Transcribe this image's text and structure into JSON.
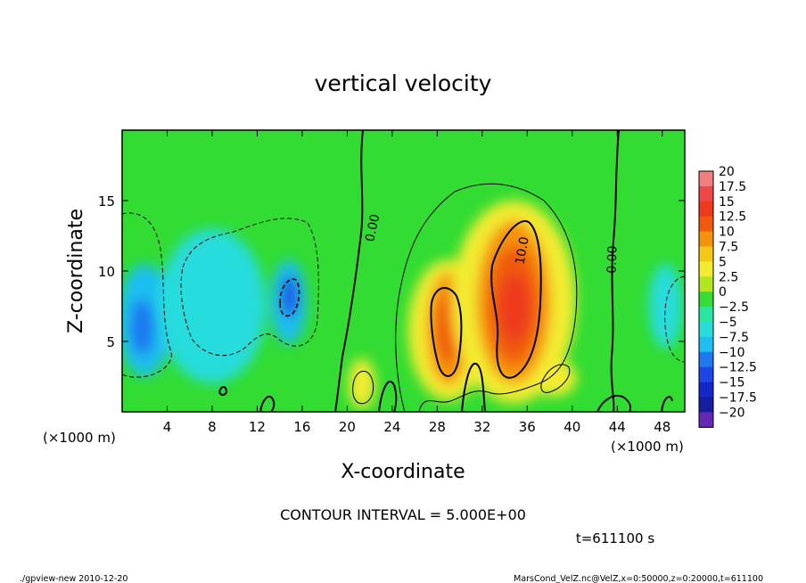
{
  "chart_data": {
    "type": "heatmap",
    "title": "vertical velocity",
    "xlabel": "X-coordinate",
    "ylabel": "Z-coordinate",
    "x_unit_left": "(×1000 m)",
    "x_unit_right": "(×1000 m)",
    "xlim": [
      0,
      50
    ],
    "ylim": [
      0,
      20
    ],
    "x_ticks": [
      4,
      8,
      12,
      16,
      20,
      24,
      28,
      32,
      36,
      40,
      44,
      48
    ],
    "y_ticks": [
      5,
      10,
      15
    ],
    "contour_interval_text": "CONTOUR INTERVAL = 5.000E+00",
    "time_text": "t=611100 s",
    "contour_labels": [
      {
        "text": "0.00",
        "x": 22.6,
        "y": 13.0,
        "rotation": -78
      },
      {
        "text": "10.0",
        "x": 35.9,
        "y": 11.4,
        "rotation": -80
      },
      {
        "text": "0.00",
        "x": 43.9,
        "y": 10.8,
        "rotation": -88
      }
    ],
    "colorbar": {
      "labels": [
        "20",
        "17.5",
        "15",
        "12.5",
        "10",
        "7.5",
        "5",
        "2.5",
        "0",
        "−2.5",
        "−5",
        "−7.5",
        "−10",
        "−12.5",
        "−15",
        "−17.5",
        "−20"
      ],
      "colors": [
        "#f08080",
        "#f04848",
        "#ee3a1c",
        "#f05a0c",
        "#f5920c",
        "#f5c818",
        "#f3ec30",
        "#b4e620",
        "#34dc34",
        "#28e6a0",
        "#28dcdc",
        "#1ebef0",
        "#1e78f0",
        "#1e46e6",
        "#1428c8",
        "#141ea0",
        "#6428b4"
      ]
    },
    "field_blobs": [
      {
        "x": 21.3,
        "y": 2.0,
        "rx": 1.2,
        "ry": 1.8,
        "value": 5
      },
      {
        "x": 29.0,
        "y": 5.8,
        "rx": 3.6,
        "ry": 5.0,
        "value": 5
      },
      {
        "x": 29.0,
        "y": 5.9,
        "rx": 1.9,
        "ry": 4.0,
        "value": 9
      },
      {
        "x": 29.0,
        "y": 6.0,
        "rx": 1.1,
        "ry": 2.5,
        "value": 13
      },
      {
        "x": 34.8,
        "y": 7.8,
        "rx": 5.5,
        "ry": 7.2,
        "value": 5
      },
      {
        "x": 34.8,
        "y": 7.8,
        "rx": 3.3,
        "ry": 5.8,
        "value": 9
      },
      {
        "x": 34.8,
        "y": 7.6,
        "rx": 2.3,
        "ry": 4.2,
        "value": 12.5
      },
      {
        "x": 34.9,
        "y": 7.4,
        "rx": 1.4,
        "ry": 2.4,
        "value": 15
      },
      {
        "x": 38.4,
        "y": 2.4,
        "rx": 2.0,
        "ry": 1.3,
        "value": 5
      },
      {
        "x": 2.0,
        "y": 6.5,
        "rx": 2.4,
        "ry": 4.0,
        "value": -7
      },
      {
        "x": 1.8,
        "y": 6.0,
        "rx": 1.1,
        "ry": 2.0,
        "value": -9
      },
      {
        "x": 14.8,
        "y": 7.8,
        "rx": 1.6,
        "ry": 3.0,
        "value": -8
      },
      {
        "x": 14.9,
        "y": 8.2,
        "rx": 0.7,
        "ry": 1.5,
        "value": -13
      },
      {
        "x": 8.0,
        "y": 7.5,
        "rx": 4.8,
        "ry": 5.5,
        "value": -4
      },
      {
        "x": 48.3,
        "y": 7.5,
        "rx": 1.5,
        "ry": 3.0,
        "value": -5
      }
    ]
  },
  "footer": {
    "left": "./gpview-new  2010-12-20",
    "right": "MarsCond_VelZ.nc@VelZ,x=0:50000,z=0:20000,t=611100"
  }
}
